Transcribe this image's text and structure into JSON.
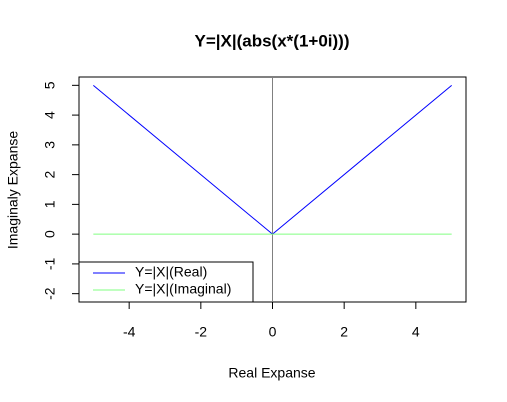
{
  "chart_data": {
    "type": "line",
    "title": "Y=|X|(abs(x*(1+0i)))",
    "x_label": "Real Expanse",
    "y_label": "Imaginaly Expanse",
    "x": [
      -5,
      0,
      5
    ],
    "series": [
      {
        "name": "Y=|X|(Real)",
        "color": "#0000ff",
        "values": [
          5,
          0,
          5
        ]
      },
      {
        "name": "Y=|X|(Imaginal)",
        "color": "#80ff80",
        "values": [
          0,
          0,
          0
        ]
      }
    ],
    "vline": 0,
    "vline_color": "#808080",
    "xlim": [
      -5.4,
      5.4
    ],
    "xticks": [
      -4,
      -2,
      0,
      2,
      4
    ],
    "ylim": [
      -2.28,
      5.28
    ],
    "yticks": [
      -2,
      -1,
      0,
      1,
      2,
      3,
      4,
      5
    ],
    "legend": "bottomleft"
  }
}
